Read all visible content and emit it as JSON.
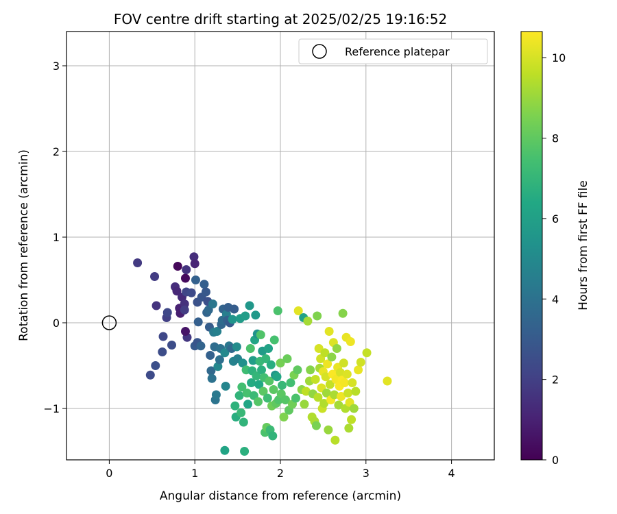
{
  "chart_data": {
    "type": "scatter",
    "title": "FOV centre drift starting at 2025/02/25 19:16:52",
    "xlabel": "Angular distance from reference (arcmin)",
    "ylabel": "Rotation from reference (arcmin)",
    "xlim": [
      -0.5,
      4.5
    ],
    "ylim": [
      -1.6,
      3.4
    ],
    "xticks": [
      0,
      1,
      2,
      3,
      4
    ],
    "yticks": [
      -1,
      0,
      1,
      2,
      3
    ],
    "grid": true,
    "legend": {
      "placement": "top-right",
      "entries": [
        {
          "label": "Reference platepar",
          "marker": "open-circle"
        }
      ]
    },
    "reference_point": {
      "x": 0,
      "y": 0
    },
    "colorbar": {
      "label": "Hours from first FF file",
      "colormap": "viridis",
      "min": 0,
      "max": 10.65,
      "ticks": [
        0,
        2,
        4,
        6,
        8,
        10
      ]
    },
    "points": [
      {
        "x": 0.33,
        "y": 0.7,
        "c": 1.8
      },
      {
        "x": 0.53,
        "y": 0.54,
        "c": 1.9
      },
      {
        "x": 0.55,
        "y": 0.2,
        "c": 1.6
      },
      {
        "x": 0.63,
        "y": -0.16,
        "c": 2.3
      },
      {
        "x": 0.62,
        "y": -0.34,
        "c": 2.5
      },
      {
        "x": 0.48,
        "y": -0.61,
        "c": 2.4
      },
      {
        "x": 0.54,
        "y": -0.5,
        "c": 2.6
      },
      {
        "x": 0.67,
        "y": 0.06,
        "c": 2.0
      },
      {
        "x": 0.68,
        "y": 0.12,
        "c": 2.3
      },
      {
        "x": 0.73,
        "y": -0.26,
        "c": 2.5
      },
      {
        "x": 0.77,
        "y": 0.42,
        "c": 1.4
      },
      {
        "x": 0.79,
        "y": 0.37,
        "c": 1.2
      },
      {
        "x": 0.8,
        "y": 0.66,
        "c": 0.2
      },
      {
        "x": 0.82,
        "y": 0.17,
        "c": 1.0
      },
      {
        "x": 0.83,
        "y": 0.11,
        "c": 0.9
      },
      {
        "x": 0.85,
        "y": 0.3,
        "c": 1.3
      },
      {
        "x": 0.88,
        "y": 0.22,
        "c": 1.5
      },
      {
        "x": 0.89,
        "y": 0.52,
        "c": 0.3
      },
      {
        "x": 0.9,
        "y": 0.62,
        "c": 1.6
      },
      {
        "x": 0.88,
        "y": 0.15,
        "c": 1.9
      },
      {
        "x": 0.9,
        "y": 0.36,
        "c": 2.2
      },
      {
        "x": 0.91,
        "y": -0.17,
        "c": 1.7
      },
      {
        "x": 0.89,
        "y": -0.1,
        "c": 0.6
      },
      {
        "x": 0.96,
        "y": 0.35,
        "c": 2.4
      },
      {
        "x": 0.99,
        "y": 0.77,
        "c": 1.4
      },
      {
        "x": 1.0,
        "y": 0.69,
        "c": 1.1
      },
      {
        "x": 1.01,
        "y": 0.5,
        "c": 3.3
      },
      {
        "x": 1.03,
        "y": 0.24,
        "c": 2.7
      },
      {
        "x": 1.0,
        "y": -0.27,
        "c": 3.0
      },
      {
        "x": 1.04,
        "y": 0.01,
        "c": 3.2
      },
      {
        "x": 1.03,
        "y": -0.23,
        "c": 2.8
      },
      {
        "x": 1.07,
        "y": -0.27,
        "c": 3.4
      },
      {
        "x": 1.08,
        "y": 0.3,
        "c": 2.8
      },
      {
        "x": 1.11,
        "y": 0.45,
        "c": 3.2
      },
      {
        "x": 1.13,
        "y": 0.36,
        "c": 2.9
      },
      {
        "x": 1.14,
        "y": 0.12,
        "c": 3.4
      },
      {
        "x": 1.15,
        "y": 0.25,
        "c": 2.6
      },
      {
        "x": 1.16,
        "y": 0.15,
        "c": 3.6
      },
      {
        "x": 1.17,
        "y": -0.05,
        "c": 3.1
      },
      {
        "x": 1.18,
        "y": -0.38,
        "c": 3.3
      },
      {
        "x": 1.19,
        "y": -0.56,
        "c": 3.6
      },
      {
        "x": 1.2,
        "y": -0.65,
        "c": 4.0
      },
      {
        "x": 1.21,
        "y": 0.22,
        "c": 4.2
      },
      {
        "x": 1.22,
        "y": -0.11,
        "c": 4.4
      },
      {
        "x": 1.23,
        "y": -0.28,
        "c": 3.8
      },
      {
        "x": 1.24,
        "y": -0.9,
        "c": 4.1
      },
      {
        "x": 1.25,
        "y": -0.84,
        "c": 4.3
      },
      {
        "x": 1.26,
        "y": -0.1,
        "c": 4.6
      },
      {
        "x": 1.27,
        "y": -0.51,
        "c": 4.9
      },
      {
        "x": 1.29,
        "y": -0.43,
        "c": 3.9
      },
      {
        "x": 1.3,
        "y": -0.3,
        "c": 4.0
      },
      {
        "x": 1.31,
        "y": -0.02,
        "c": 3.5
      },
      {
        "x": 1.32,
        "y": 0.03,
        "c": 3.7
      },
      {
        "x": 1.33,
        "y": 0.16,
        "c": 3.4
      },
      {
        "x": 1.35,
        "y": -0.35,
        "c": 5.0
      },
      {
        "x": 1.36,
        "y": -0.74,
        "c": 4.8
      },
      {
        "x": 1.35,
        "y": -1.49,
        "c": 6.2
      },
      {
        "x": 1.37,
        "y": 0.1,
        "c": 4.5
      },
      {
        "x": 1.38,
        "y": 0.03,
        "c": 3.3
      },
      {
        "x": 1.39,
        "y": 0.18,
        "c": 3.2
      },
      {
        "x": 1.4,
        "y": -0.27,
        "c": 4.2
      },
      {
        "x": 1.41,
        "y": 0.0,
        "c": 3.0
      },
      {
        "x": 1.43,
        "y": -0.3,
        "c": 3.6
      },
      {
        "x": 1.44,
        "y": 0.04,
        "c": 5.5
      },
      {
        "x": 1.45,
        "y": -0.45,
        "c": 4.7
      },
      {
        "x": 1.46,
        "y": 0.16,
        "c": 3.1
      },
      {
        "x": 1.47,
        "y": -0.97,
        "c": 6.8
      },
      {
        "x": 1.48,
        "y": -1.1,
        "c": 6.6
      },
      {
        "x": 1.49,
        "y": -0.28,
        "c": 5.1
      },
      {
        "x": 1.5,
        "y": -0.42,
        "c": 4.6
      },
      {
        "x": 1.52,
        "y": -0.85,
        "c": 6.9
      },
      {
        "x": 1.53,
        "y": 0.05,
        "c": 5.8
      },
      {
        "x": 1.54,
        "y": -1.05,
        "c": 7.1
      },
      {
        "x": 1.55,
        "y": -0.75,
        "c": 7.4
      },
      {
        "x": 1.56,
        "y": -0.47,
        "c": 5.3
      },
      {
        "x": 1.57,
        "y": -1.16,
        "c": 6.9
      },
      {
        "x": 1.58,
        "y": -1.5,
        "c": 6.7
      },
      {
        "x": 1.59,
        "y": 0.08,
        "c": 5.9
      },
      {
        "x": 1.6,
        "y": -0.55,
        "c": 7.3
      },
      {
        "x": 1.61,
        "y": -0.82,
        "c": 7.5
      },
      {
        "x": 1.62,
        "y": -0.95,
        "c": 6.3
      },
      {
        "x": 1.64,
        "y": 0.2,
        "c": 5.6
      },
      {
        "x": 1.65,
        "y": -0.3,
        "c": 7.6
      },
      {
        "x": 1.66,
        "y": -0.7,
        "c": 6.5
      },
      {
        "x": 1.67,
        "y": -0.56,
        "c": 6.8
      },
      {
        "x": 1.68,
        "y": -0.44,
        "c": 5.9
      },
      {
        "x": 1.69,
        "y": -0.85,
        "c": 7.2
      },
      {
        "x": 1.7,
        "y": -0.2,
        "c": 6.2
      },
      {
        "x": 1.71,
        "y": 0.09,
        "c": 5.7
      },
      {
        "x": 1.72,
        "y": -0.62,
        "c": 7.0
      },
      {
        "x": 1.73,
        "y": -0.13,
        "c": 5.4
      },
      {
        "x": 1.74,
        "y": -0.92,
        "c": 7.8
      },
      {
        "x": 1.75,
        "y": -0.72,
        "c": 6.4
      },
      {
        "x": 1.76,
        "y": -0.45,
        "c": 7.1
      },
      {
        "x": 1.77,
        "y": -0.14,
        "c": 7.7
      },
      {
        "x": 1.78,
        "y": -0.55,
        "c": 6.7
      },
      {
        "x": 1.79,
        "y": -0.33,
        "c": 5.8
      },
      {
        "x": 1.8,
        "y": -0.8,
        "c": 7.9
      },
      {
        "x": 1.81,
        "y": -0.64,
        "c": 7.4
      },
      {
        "x": 1.82,
        "y": -1.28,
        "c": 7.6
      },
      {
        "x": 1.83,
        "y": -0.42,
        "c": 7.0
      },
      {
        "x": 1.84,
        "y": -1.22,
        "c": 8.1
      },
      {
        "x": 1.85,
        "y": -0.88,
        "c": 7.3
      },
      {
        "x": 1.86,
        "y": -0.3,
        "c": 6.1
      },
      {
        "x": 1.87,
        "y": -0.68,
        "c": 7.8
      },
      {
        "x": 1.88,
        "y": -1.25,
        "c": 7.2
      },
      {
        "x": 1.89,
        "y": -0.49,
        "c": 6.6
      },
      {
        "x": 1.9,
        "y": -0.97,
        "c": 8.3
      },
      {
        "x": 1.91,
        "y": -1.32,
        "c": 6.9
      },
      {
        "x": 1.92,
        "y": -0.78,
        "c": 7.9
      },
      {
        "x": 1.93,
        "y": -0.2,
        "c": 7.5
      },
      {
        "x": 1.94,
        "y": -0.61,
        "c": 5.6
      },
      {
        "x": 1.95,
        "y": -0.94,
        "c": 8.0
      },
      {
        "x": 1.96,
        "y": -0.63,
        "c": 6.3
      },
      {
        "x": 1.97,
        "y": 0.14,
        "c": 7.6
      },
      {
        "x": 1.98,
        "y": -0.9,
        "c": 7.7
      },
      {
        "x": 2.0,
        "y": -0.47,
        "c": 8.4
      },
      {
        "x": 2.01,
        "y": -0.83,
        "c": 7.9
      },
      {
        "x": 2.02,
        "y": -0.73,
        "c": 7.1
      },
      {
        "x": 2.04,
        "y": -1.1,
        "c": 8.6
      },
      {
        "x": 2.06,
        "y": -0.9,
        "c": 7.8
      },
      {
        "x": 2.08,
        "y": -0.42,
        "c": 8.2
      },
      {
        "x": 2.1,
        "y": -1.02,
        "c": 8.0
      },
      {
        "x": 2.12,
        "y": -0.7,
        "c": 7.4
      },
      {
        "x": 2.14,
        "y": -0.95,
        "c": 8.3
      },
      {
        "x": 2.16,
        "y": -0.61,
        "c": 8.5
      },
      {
        "x": 2.18,
        "y": -0.88,
        "c": 7.6
      },
      {
        "x": 2.2,
        "y": -0.55,
        "c": 8.0
      },
      {
        "x": 2.21,
        "y": 0.14,
        "c": 10.2
      },
      {
        "x": 2.25,
        "y": -0.78,
        "c": 8.8
      },
      {
        "x": 2.27,
        "y": 0.06,
        "c": 6.1
      },
      {
        "x": 2.28,
        "y": -0.95,
        "c": 9.0
      },
      {
        "x": 2.3,
        "y": -0.8,
        "c": 9.6
      },
      {
        "x": 2.32,
        "y": 0.02,
        "c": 9.2
      },
      {
        "x": 2.34,
        "y": -0.68,
        "c": 9.1
      },
      {
        "x": 2.35,
        "y": -0.55,
        "c": 8.7
      },
      {
        "x": 2.37,
        "y": -1.1,
        "c": 9.4
      },
      {
        "x": 2.38,
        "y": -0.83,
        "c": 8.9
      },
      {
        "x": 2.4,
        "y": -1.15,
        "c": 9.3
      },
      {
        "x": 2.41,
        "y": -0.66,
        "c": 9.7
      },
      {
        "x": 2.42,
        "y": -1.2,
        "c": 8.5
      },
      {
        "x": 2.43,
        "y": 0.08,
        "c": 8.6
      },
      {
        "x": 2.44,
        "y": -0.87,
        "c": 9.5
      },
      {
        "x": 2.45,
        "y": -0.3,
        "c": 10.0
      },
      {
        "x": 2.46,
        "y": -0.53,
        "c": 9.2
      },
      {
        "x": 2.47,
        "y": -0.42,
        "c": 9.9
      },
      {
        "x": 2.48,
        "y": -0.76,
        "c": 10.1
      },
      {
        "x": 2.49,
        "y": -1.0,
        "c": 9.8
      },
      {
        "x": 2.5,
        "y": -0.57,
        "c": 10.3
      },
      {
        "x": 2.51,
        "y": -0.94,
        "c": 9.4
      },
      {
        "x": 2.52,
        "y": -0.35,
        "c": 9.6
      },
      {
        "x": 2.53,
        "y": -0.63,
        "c": 10.0
      },
      {
        "x": 2.54,
        "y": -0.82,
        "c": 9.1
      },
      {
        "x": 2.55,
        "y": -0.48,
        "c": 10.4
      },
      {
        "x": 2.56,
        "y": -1.25,
        "c": 9.0
      },
      {
        "x": 2.57,
        "y": -0.1,
        "c": 10.2
      },
      {
        "x": 2.58,
        "y": -0.72,
        "c": 9.7
      },
      {
        "x": 2.59,
        "y": -0.9,
        "c": 10.5
      },
      {
        "x": 2.6,
        "y": -0.4,
        "c": 8.8
      },
      {
        "x": 2.61,
        "y": -0.6,
        "c": 10.6
      },
      {
        "x": 2.62,
        "y": -0.23,
        "c": 10.1
      },
      {
        "x": 2.63,
        "y": -0.84,
        "c": 9.3
      },
      {
        "x": 2.64,
        "y": -1.37,
        "c": 9.5
      },
      {
        "x": 2.65,
        "y": -0.66,
        "c": 10.5
      },
      {
        "x": 2.66,
        "y": -0.3,
        "c": 8.9
      },
      {
        "x": 2.67,
        "y": -0.52,
        "c": 10.3
      },
      {
        "x": 2.68,
        "y": -0.96,
        "c": 9.2
      },
      {
        "x": 2.69,
        "y": -0.74,
        "c": 10.6
      },
      {
        "x": 2.7,
        "y": -0.58,
        "c": 10.0
      },
      {
        "x": 2.71,
        "y": -0.86,
        "c": 10.4
      },
      {
        "x": 2.72,
        "y": -0.67,
        "c": 10.6
      },
      {
        "x": 2.73,
        "y": 0.11,
        "c": 8.7
      },
      {
        "x": 2.74,
        "y": -0.47,
        "c": 9.9
      },
      {
        "x": 2.75,
        "y": -0.7,
        "c": 10.5
      },
      {
        "x": 2.76,
        "y": -1.0,
        "c": 9.4
      },
      {
        "x": 2.77,
        "y": -0.17,
        "c": 10.3
      },
      {
        "x": 2.78,
        "y": -0.6,
        "c": 10.1
      },
      {
        "x": 2.79,
        "y": -0.82,
        "c": 9.8
      },
      {
        "x": 2.8,
        "y": -1.23,
        "c": 9.3
      },
      {
        "x": 2.81,
        "y": -0.93,
        "c": 10.2
      },
      {
        "x": 2.82,
        "y": -0.22,
        "c": 10.4
      },
      {
        "x": 2.83,
        "y": -1.13,
        "c": 9.6
      },
      {
        "x": 2.84,
        "y": -0.7,
        "c": 10.0
      },
      {
        "x": 2.86,
        "y": -1.0,
        "c": 9.1
      },
      {
        "x": 2.88,
        "y": -0.8,
        "c": 9.5
      },
      {
        "x": 2.91,
        "y": -0.55,
        "c": 10.3
      },
      {
        "x": 2.94,
        "y": -0.46,
        "c": 9.9
      },
      {
        "x": 3.01,
        "y": -0.35,
        "c": 9.7
      },
      {
        "x": 3.25,
        "y": -0.68,
        "c": 10.2
      }
    ]
  }
}
